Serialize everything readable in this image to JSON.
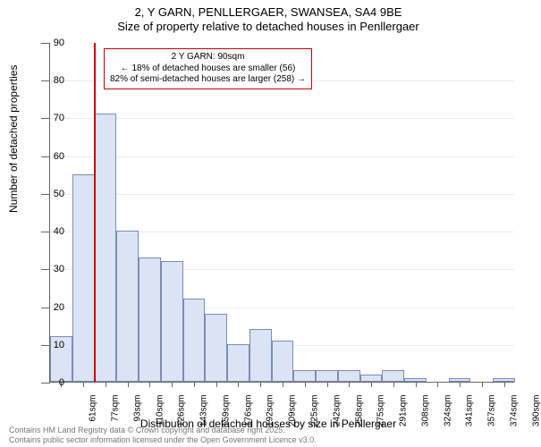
{
  "title": {
    "line1": "2, Y GARN, PENLLERGAER, SWANSEA, SA4 9BE",
    "line2": "Size of property relative to detached houses in Penllergaer"
  },
  "chart": {
    "type": "histogram",
    "ylabel": "Number of detached properties",
    "xlabel": "Distribution of detached houses by size in Penllergaer",
    "ylim": [
      0,
      90
    ],
    "ytick_step": 10,
    "bar_fill": "#dbe3f4",
    "bar_border": "#7a8db8",
    "background": "#ffffff",
    "marker_color": "#cc0000",
    "marker_x_label": "93sqm",
    "bars": [
      {
        "label": "61sqm",
        "value": 12
      },
      {
        "label": "77sqm",
        "value": 55
      },
      {
        "label": "93sqm",
        "value": 71
      },
      {
        "label": "110sqm",
        "value": 40
      },
      {
        "label": "126sqm",
        "value": 33
      },
      {
        "label": "143sqm",
        "value": 32
      },
      {
        "label": "159sqm",
        "value": 22
      },
      {
        "label": "176sqm",
        "value": 18
      },
      {
        "label": "192sqm",
        "value": 10
      },
      {
        "label": "209sqm",
        "value": 14
      },
      {
        "label": "225sqm",
        "value": 11
      },
      {
        "label": "242sqm",
        "value": 3
      },
      {
        "label": "258sqm",
        "value": 3
      },
      {
        "label": "275sqm",
        "value": 3
      },
      {
        "label": "291sqm",
        "value": 2
      },
      {
        "label": "308sqm",
        "value": 3
      },
      {
        "label": "324sqm",
        "value": 1
      },
      {
        "label": "341sqm",
        "value": 0
      },
      {
        "label": "357sqm",
        "value": 1
      },
      {
        "label": "374sqm",
        "value": 0
      },
      {
        "label": "390sqm",
        "value": 1
      }
    ],
    "annotation": {
      "line1": "2 Y GARN: 90sqm",
      "line2": "← 18% of detached houses are smaller (56)",
      "line3": "82% of semi-detached houses are larger (258) →"
    }
  },
  "footer": {
    "line1": "Contains HM Land Registry data © Crown copyright and database right 2025.",
    "line2": "Contains public sector information licensed under the Open Government Licence v3.0."
  }
}
